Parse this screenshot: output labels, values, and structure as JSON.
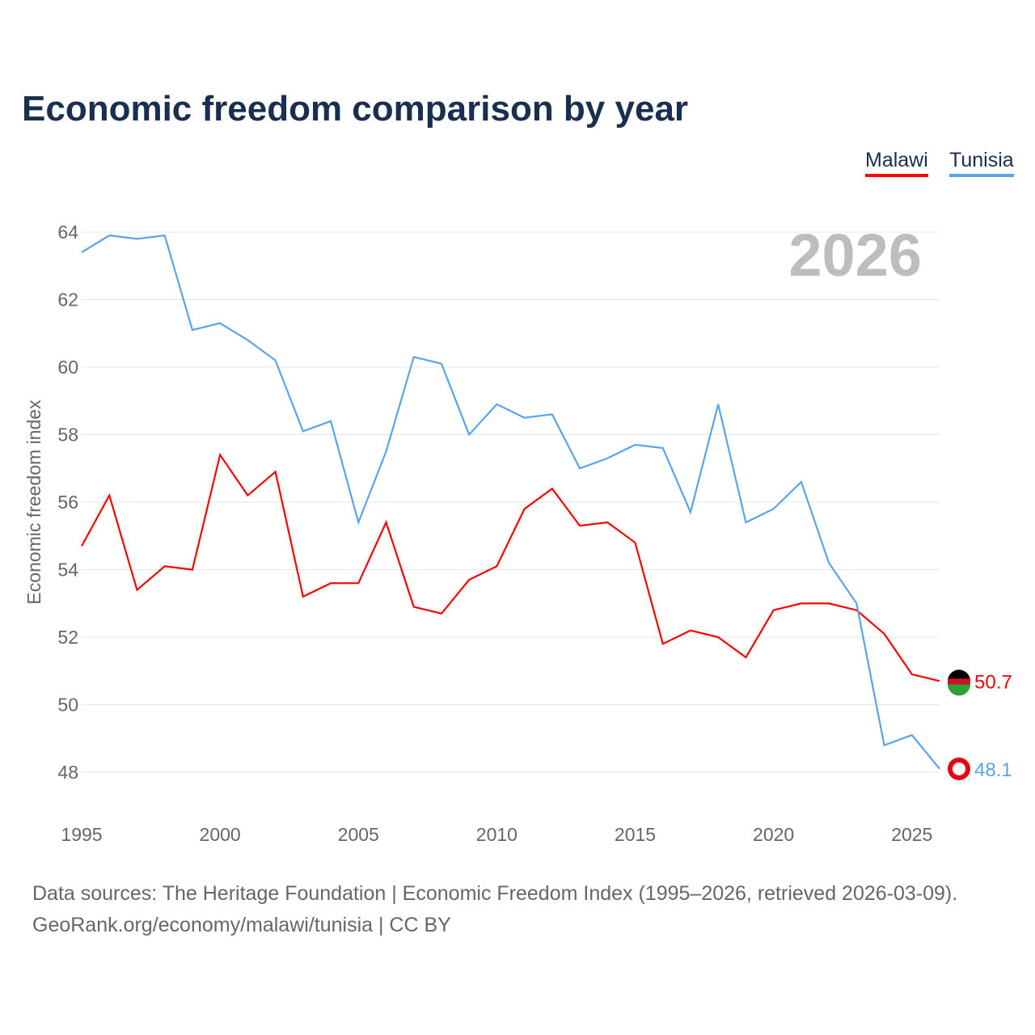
{
  "title": "Economic freedom comparison by year",
  "year_watermark": "2026",
  "source_line1": "Data sources: The Heritage Foundation | Economic Freedom Index (1995–2026, retrieved 2026-03-09).",
  "source_line2": "GeoRank.org/economy/malawi/tunisia | CC BY",
  "chart_data": {
    "type": "line",
    "title": "Economic freedom comparison by year",
    "xlabel": "",
    "ylabel": "Economic freedom index",
    "ylim": [
      48,
      64
    ],
    "xlim": [
      1995,
      2026
    ],
    "yticks": [
      "48",
      "50",
      "52",
      "54",
      "56",
      "58",
      "60",
      "62",
      "64"
    ],
    "xticks": [
      "1995",
      "2000",
      "2005",
      "2010",
      "2015",
      "2020",
      "2025"
    ],
    "legend": "top-right",
    "grid": true,
    "x": [
      1995,
      1996,
      1997,
      1998,
      1999,
      2000,
      2001,
      2002,
      2003,
      2004,
      2005,
      2006,
      2007,
      2008,
      2009,
      2010,
      2011,
      2012,
      2013,
      2014,
      2015,
      2016,
      2017,
      2018,
      2019,
      2020,
      2021,
      2022,
      2023,
      2024,
      2025,
      2026
    ],
    "series": [
      {
        "name": "Malawi",
        "color": "#ff0000",
        "end_label": "50.7",
        "values": [
          54.7,
          56.2,
          53.4,
          54.1,
          54.0,
          57.4,
          56.2,
          56.9,
          53.2,
          53.6,
          53.6,
          55.4,
          52.9,
          52.7,
          53.7,
          54.1,
          55.8,
          56.4,
          55.3,
          55.4,
          54.8,
          51.8,
          52.2,
          52.0,
          51.4,
          52.8,
          53.0,
          53.0,
          52.8,
          52.1,
          50.9,
          50.7
        ]
      },
      {
        "name": "Tunisia",
        "color": "#5ba4ea",
        "end_label": "48.1",
        "values": [
          63.4,
          63.9,
          63.8,
          63.9,
          61.1,
          61.3,
          60.8,
          60.2,
          58.1,
          58.4,
          55.4,
          57.5,
          60.3,
          60.1,
          58.0,
          58.9,
          58.5,
          58.6,
          57.0,
          57.3,
          57.7,
          57.6,
          55.7,
          58.9,
          55.4,
          55.8,
          56.6,
          54.2,
          53.0,
          48.8,
          49.1,
          48.1
        ]
      }
    ]
  }
}
